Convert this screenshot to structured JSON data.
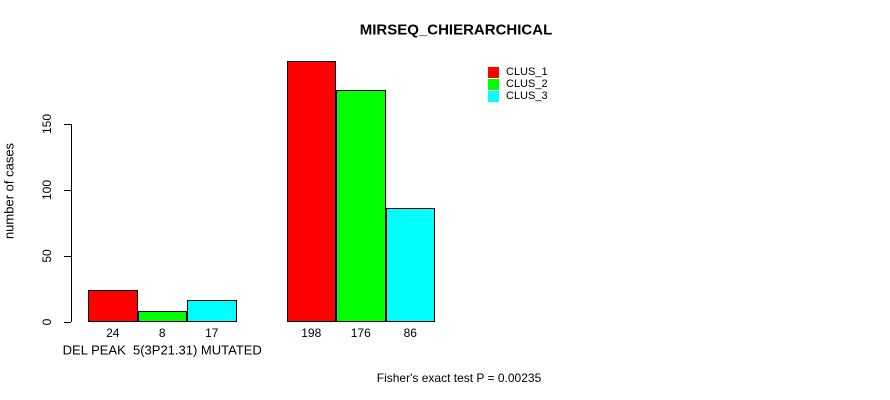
{
  "figure": {
    "title": "MIRSEQ_CHIERARCHICAL",
    "footnote": "Fisher's exact test P = 0.00235"
  },
  "chart_data": {
    "type": "bar",
    "title": "MIRSEQ_CHIERARCHICAL",
    "xlabel": "",
    "ylabel": "number of cases",
    "ylim": [
      0,
      150
    ],
    "yticks": [
      0,
      50,
      100,
      150
    ],
    "grid": false,
    "legend_position": "top-right",
    "series": [
      {
        "name": "CLUS_1",
        "color": "#ff0000"
      },
      {
        "name": "CLUS_2",
        "color": "#00ff00"
      },
      {
        "name": "CLUS_3",
        "color": "#00ffff"
      }
    ],
    "groups": [
      {
        "label": "DEL PEAK  5(3P21.31) MUTATED",
        "values": [
          24,
          8,
          17
        ]
      },
      {
        "label": "",
        "values": [
          198,
          176,
          86
        ]
      }
    ],
    "annotation": "Fisher's exact test P = 0.00235"
  }
}
